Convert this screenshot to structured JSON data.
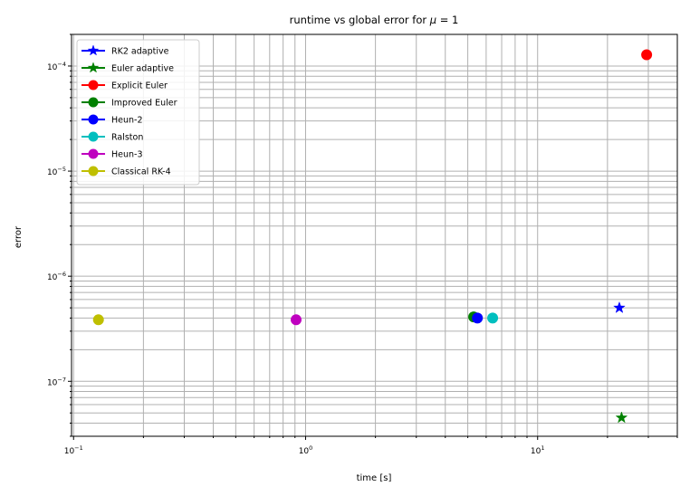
{
  "chart_data": {
    "type": "scatter",
    "title": "runtime vs global error for",
    "title_mu": "μ",
    "title_suffix": " = 1",
    "xlabel": "time [s]",
    "ylabel": "error",
    "xscale": "log",
    "yscale": "log",
    "xlim": [
      0.098,
      40
    ],
    "ylim": [
      3e-08,
      0.0002
    ],
    "grid": "both (major and minor)",
    "legend_position": "top-left",
    "x_major_ticks": [
      {
        "value": 0.1,
        "base": "10",
        "exp": "−1"
      },
      {
        "value": 1,
        "base": "10",
        "exp": "0"
      },
      {
        "value": 10,
        "base": "10",
        "exp": "1"
      }
    ],
    "y_major_ticks": [
      {
        "value": 1e-07,
        "base": "10",
        "exp": "−7"
      },
      {
        "value": 1e-06,
        "base": "10",
        "exp": "−6"
      },
      {
        "value": 1e-05,
        "base": "10",
        "exp": "−5"
      },
      {
        "value": 0.0001,
        "base": "10",
        "exp": "−4"
      }
    ],
    "series": [
      {
        "name": "RK2 adaptive",
        "color": "#0000ff",
        "marker": "star",
        "points": [
          {
            "x": 22.5,
            "y": 5e-07
          }
        ]
      },
      {
        "name": "Euler adaptive",
        "color": "#008000",
        "marker": "star",
        "points": [
          {
            "x": 23.0,
            "y": 4.5e-08
          }
        ]
      },
      {
        "name": "Explicit Euler",
        "color": "#ff0000",
        "marker": "circle",
        "points": [
          {
            "x": 29.5,
            "y": 0.000128
          }
        ]
      },
      {
        "name": "Improved Euler",
        "color": "#008000",
        "marker": "circle",
        "points": [
          {
            "x": 5.3,
            "y": 4.1e-07
          }
        ]
      },
      {
        "name": "Heun-2",
        "color": "#0000ff",
        "marker": "circle",
        "points": [
          {
            "x": 5.5,
            "y": 4e-07
          }
        ]
      },
      {
        "name": "Ralston",
        "color": "#00bfbf",
        "marker": "circle",
        "points": [
          {
            "x": 6.4,
            "y": 4e-07
          }
        ]
      },
      {
        "name": "Heun-3",
        "color": "#bf00bf",
        "marker": "circle",
        "points": [
          {
            "x": 0.91,
            "y": 3.85e-07
          }
        ]
      },
      {
        "name": "Classical RK-4",
        "color": "#bfbf00",
        "marker": "circle",
        "points": [
          {
            "x": 0.128,
            "y": 3.85e-07
          }
        ]
      }
    ]
  }
}
